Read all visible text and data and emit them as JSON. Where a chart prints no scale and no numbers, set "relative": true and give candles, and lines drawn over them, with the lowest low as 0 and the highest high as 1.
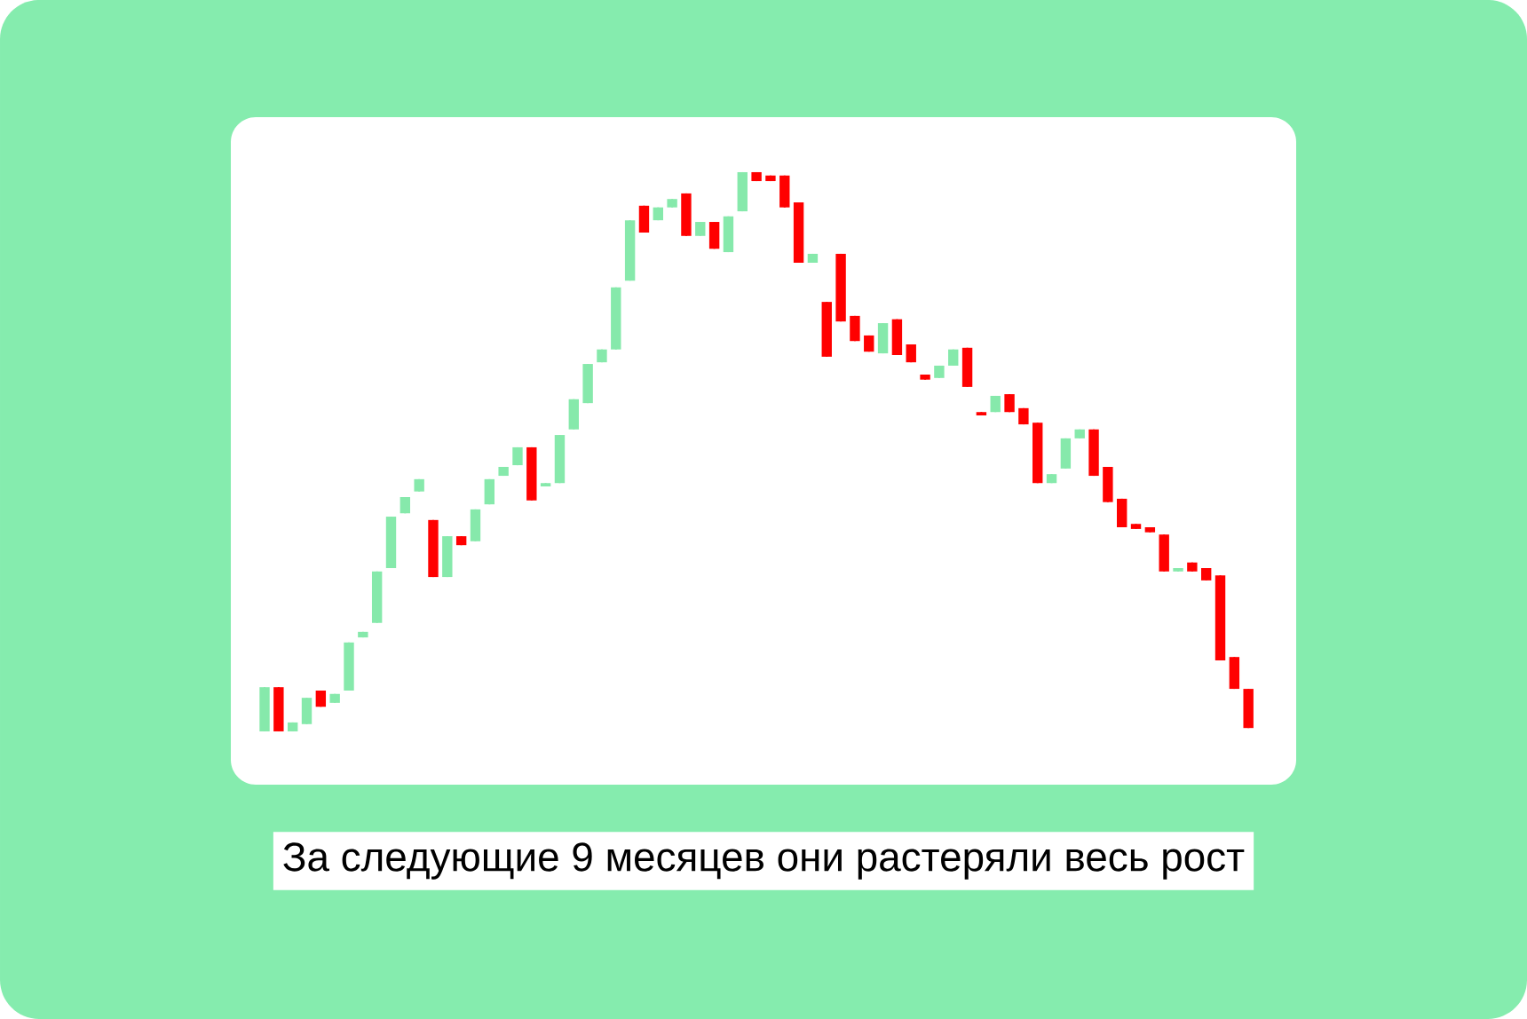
{
  "chart_data": {
    "type": "candlestick",
    "relative": true,
    "annotations": [
      "За следующие 9 месяцев они растеряли весь рост"
    ],
    "categories": [
      null,
      null,
      null,
      null,
      null,
      null,
      null,
      null,
      null,
      null,
      null,
      null,
      null,
      null,
      null,
      null,
      null,
      null,
      null,
      null,
      null,
      null,
      null,
      null,
      null,
      null,
      null,
      null,
      null,
      null,
      null,
      null,
      null,
      null,
      null,
      null,
      null,
      null,
      null,
      null,
      null,
      null,
      null,
      null,
      null,
      null,
      null,
      null,
      null,
      null,
      null,
      null,
      null,
      null,
      null,
      null,
      null,
      null,
      null,
      null,
      null,
      null,
      null,
      null,
      null,
      null,
      null,
      null,
      null,
      null,
      null
    ],
    "ohlc": [
      [
        0,
        0.079,
        0,
        0.079
      ],
      [
        0.079,
        0.079,
        0,
        0
      ],
      [
        0,
        0.016,
        0,
        0.016
      ],
      [
        0.013,
        0.06,
        0.013,
        0.06
      ],
      [
        0.073,
        0.073,
        0.044,
        0.044
      ],
      [
        0.051,
        0.067,
        0.051,
        0.067
      ],
      [
        0.073,
        0.159,
        0.073,
        0.159
      ],
      [
        0.168,
        0.178,
        0.168,
        0.178
      ],
      [
        0.194,
        0.286,
        0.194,
        0.286
      ],
      [
        0.292,
        0.384,
        0.292,
        0.384
      ],
      [
        0.39,
        0.419,
        0.39,
        0.419
      ],
      [
        0.429,
        0.451,
        0.429,
        0.451
      ],
      [
        0.378,
        0.378,
        0.276,
        0.276
      ],
      [
        0.276,
        0.349,
        0.276,
        0.349
      ],
      [
        0.349,
        0.349,
        0.333,
        0.333
      ],
      [
        0.34,
        0.397,
        0.34,
        0.397
      ],
      [
        0.406,
        0.451,
        0.406,
        0.451
      ],
      [
        0.457,
        0.473,
        0.457,
        0.473
      ],
      [
        0.476,
        0.508,
        0.476,
        0.508
      ],
      [
        0.508,
        0.508,
        0.413,
        0.413
      ],
      [
        0.438,
        0.444,
        0.438,
        0.444
      ],
      [
        0.444,
        0.53,
        0.444,
        0.53
      ],
      [
        0.54,
        0.594,
        0.54,
        0.594
      ],
      [
        0.587,
        0.657,
        0.587,
        0.657
      ],
      [
        0.66,
        0.683,
        0.66,
        0.683
      ],
      [
        0.683,
        0.794,
        0.683,
        0.794
      ],
      [
        0.806,
        0.914,
        0.806,
        0.914
      ],
      [
        0.94,
        0.94,
        0.892,
        0.892
      ],
      [
        0.914,
        0.937,
        0.914,
        0.937
      ],
      [
        0.937,
        0.952,
        0.937,
        0.952
      ],
      [
        0.962,
        0.962,
        0.886,
        0.886
      ],
      [
        0.886,
        0.911,
        0.886,
        0.911
      ],
      [
        0.911,
        0.911,
        0.863,
        0.863
      ],
      [
        0.857,
        0.921,
        0.857,
        0.921
      ],
      [
        0.93,
        1,
        0.93,
        1
      ],
      [
        1,
        1,
        0.984,
        0.984
      ],
      [
        0.994,
        0.994,
        0.984,
        0.984
      ],
      [
        0.994,
        0.994,
        0.937,
        0.937
      ],
      [
        0.946,
        0.946,
        0.838,
        0.838
      ],
      [
        0.838,
        0.854,
        0.838,
        0.854
      ],
      [
        0.768,
        0.768,
        0.67,
        0.67
      ],
      [
        0.854,
        0.854,
        0.733,
        0.733
      ],
      [
        0.743,
        0.743,
        0.698,
        0.698
      ],
      [
        0.708,
        0.708,
        0.679,
        0.679
      ],
      [
        0.676,
        0.73,
        0.676,
        0.73
      ],
      [
        0.737,
        0.737,
        0.673,
        0.673
      ],
      [
        0.692,
        0.692,
        0.66,
        0.66
      ],
      [
        0.638,
        0.638,
        0.629,
        0.629
      ],
      [
        0.632,
        0.654,
        0.632,
        0.654
      ],
      [
        0.654,
        0.683,
        0.654,
        0.683
      ],
      [
        0.686,
        0.686,
        0.616,
        0.616
      ],
      [
        0.571,
        0.571,
        0.565,
        0.565
      ],
      [
        0.571,
        0.6,
        0.571,
        0.6
      ],
      [
        0.603,
        0.603,
        0.571,
        0.571
      ],
      [
        0.578,
        0.578,
        0.549,
        0.549
      ],
      [
        0.552,
        0.552,
        0.444,
        0.444
      ],
      [
        0.444,
        0.46,
        0.444,
        0.46
      ],
      [
        0.47,
        0.524,
        0.47,
        0.524
      ],
      [
        0.524,
        0.54,
        0.524,
        0.54
      ],
      [
        0.54,
        0.54,
        0.457,
        0.457
      ],
      [
        0.473,
        0.473,
        0.41,
        0.41
      ],
      [
        0.416,
        0.416,
        0.365,
        0.365
      ],
      [
        0.371,
        0.371,
        0.362,
        0.362
      ],
      [
        0.365,
        0.365,
        0.356,
        0.356
      ],
      [
        0.352,
        0.352,
        0.286,
        0.286
      ],
      [
        0.286,
        0.292,
        0.286,
        0.292
      ],
      [
        0.302,
        0.302,
        0.286,
        0.286
      ],
      [
        0.292,
        0.292,
        0.27,
        0.27
      ],
      [
        0.279,
        0.279,
        0.127,
        0.127
      ],
      [
        0.133,
        0.133,
        0.076,
        0.076
      ],
      [
        0.076,
        0.076,
        0.006,
        0.006
      ]
    ],
    "colors": [
      "#86e9ab",
      "#ff0000",
      "#86e9ab",
      "#86e9ab",
      "#ff0000",
      "#86e9ab",
      "#86e9ab",
      "#86e9ab",
      "#86e9ab",
      "#86e9ab",
      "#86e9ab",
      "#86e9ab",
      "#ff0000",
      "#86e9ab",
      "#ff0000",
      "#86e9ab",
      "#86e9ab",
      "#86e9ab",
      "#86e9ab",
      "#ff0000",
      "#86e9ab",
      "#86e9ab",
      "#86e9ab",
      "#86e9ab",
      "#86e9ab",
      "#86e9ab",
      "#86e9ab",
      "#ff0000",
      "#86e9ab",
      "#86e9ab",
      "#ff0000",
      "#86e9ab",
      "#ff0000",
      "#86e9ab",
      "#86e9ab",
      "#ff0000",
      "#ff0000",
      "#ff0000",
      "#ff0000",
      "#86e9ab",
      "#ff0000",
      "#ff0000",
      "#ff0000",
      "#ff0000",
      "#86e9ab",
      "#ff0000",
      "#ff0000",
      "#ff0000",
      "#86e9ab",
      "#86e9ab",
      "#ff0000",
      "#ff0000",
      "#86e9ab",
      "#ff0000",
      "#ff0000",
      "#ff0000",
      "#86e9ab",
      "#86e9ab",
      "#86e9ab",
      "#ff0000",
      "#ff0000",
      "#ff0000",
      "#ff0000",
      "#ff0000",
      "#ff0000",
      "#86e9ab",
      "#ff0000",
      "#ff0000",
      "#ff0000",
      "#ff0000",
      "#ff0000"
    ]
  }
}
